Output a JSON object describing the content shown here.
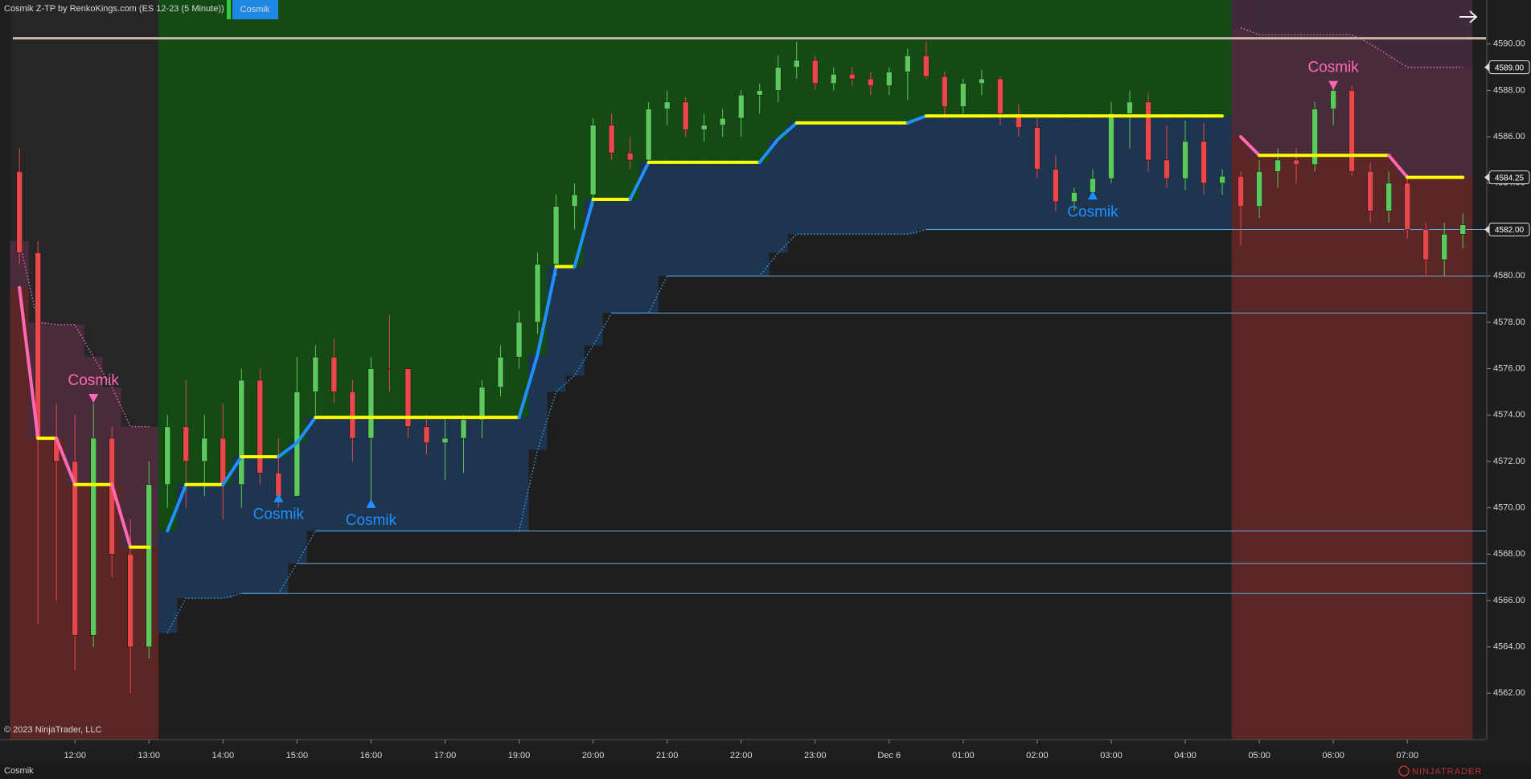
{
  "header": {
    "title": "Cosmik Z-TP by RenkoKings.com (ES 12-23 (5 Minute))",
    "tab": "Cosmik"
  },
  "footer": {
    "copyright": "© 2023 NinjaTrader, LLC",
    "tab": "Cosmik",
    "brand": "NINJATRADER"
  },
  "chart_data": {
    "type": "candlestick",
    "categories": [
      null,
      null,
      null,
      "12:00",
      null,
      null,
      null,
      "13:00",
      null,
      null,
      null,
      "14:00",
      null,
      null,
      null,
      "15:00",
      null,
      null,
      null,
      "16:00",
      null,
      null,
      null,
      "17:00",
      null,
      null,
      null,
      "19:00",
      null,
      null,
      null,
      "20:00",
      null,
      null,
      null,
      "21:00",
      null,
      null,
      null,
      "22:00",
      null,
      null,
      null,
      "23:00",
      null,
      null,
      null,
      "Dec 6",
      null,
      null,
      null,
      "01:00",
      null,
      null,
      null,
      "02:00",
      null,
      null,
      null,
      "03:00",
      null,
      null,
      null,
      "04:00",
      null,
      null,
      null,
      "05:00",
      null,
      null,
      null,
      "06:00",
      null,
      null,
      null,
      "07:00",
      null,
      null,
      null
    ],
    "open": [
      4584.5,
      4581,
      4573,
      4572,
      4564.5,
      4573,
      4568,
      4564,
      4571,
      4573.5,
      4572,
      4573,
      4571,
      4575.5,
      4571.5,
      4570.5,
      4575,
      4576.5,
      4575,
      4573,
      4576,
      4576,
      4573.5,
      4572.8,
      4573,
      4573.8,
      4575.2,
      4576.5,
      4578,
      4580.5,
      4583,
      4583.5,
      4586.5,
      4585.3,
      4585,
      4587.2,
      4587.5,
      4586.3,
      4586.5,
      4586.8,
      4587.8,
      4588,
      4589,
      4589.3,
      4588.3,
      4588.7,
      4588.5,
      4588.2,
      4588.8,
      4589.5,
      4588.6,
      4587.3,
      4588.3,
      4588.5,
      4587,
      4586.4,
      4584.6,
      4583.2,
      4583.6,
      4584.2,
      4587,
      4587.5,
      4585,
      4584.2,
      4585.8,
      4584,
      4584.3,
      4583,
      4584.5,
      4585,
      4584.8,
      4587.2,
      4588,
      4584.5,
      4582.8,
      4584,
      4582,
      4580.7,
      4581.8
    ],
    "high": [
      4585.5,
      4581.5,
      4574.5,
      4574,
      4574.5,
      4573.5,
      4569.5,
      4572,
      4574,
      4575.5,
      4574,
      4574.5,
      4576,
      4576,
      4573,
      4576.5,
      4577,
      4577.3,
      4575.5,
      4576.5,
      4578.3,
      4576,
      4574,
      4573.8,
      4574,
      4575.5,
      4577,
      4578.5,
      4581,
      4583.5,
      4584,
      4586.8,
      4587,
      4586,
      4587.5,
      4588,
      4587.7,
      4587,
      4587.2,
      4588,
      4588.3,
      4589.5,
      4590.1,
      4589.5,
      4589,
      4589,
      4588.8,
      4589,
      4589.8,
      4590.1,
      4588.8,
      4588.5,
      4588.9,
      4588.6,
      4587.4,
      4586.8,
      4585.2,
      4583.8,
      4584.6,
      4587.5,
      4588,
      4587.9,
      4586.5,
      4586.7,
      4586.6,
      4584.6,
      4584.5,
      4585,
      4585.5,
      4585.5,
      4587.5,
      4588.2,
      4588.2,
      4584.9,
      4584.5,
      4584.4,
      4582.3,
      4582.3,
      4582.7
    ],
    "low": [
      4580.5,
      4565,
      4566,
      4563,
      4564,
      4567,
      4562,
      4563.5,
      4570,
      4570,
      4570.5,
      4569.5,
      4570,
      4571,
      4570,
      4570.5,
      4574,
      4574.5,
      4572,
      4570.3,
      4575,
      4573,
      4572.3,
      4571.2,
      4571.5,
      4573,
      4574.8,
      4576,
      4577.5,
      4580,
      4582,
      4583,
      4585,
      4584.6,
      4584.8,
      4586.5,
      4586,
      4585.8,
      4586,
      4586,
      4587,
      4587.5,
      4588.5,
      4588,
      4588,
      4588.2,
      4587.8,
      4587.8,
      4587.6,
      4588.5,
      4586.8,
      4587,
      4587.8,
      4586.5,
      4586,
      4584.2,
      4582.8,
      4582.8,
      4583.3,
      4584,
      4585.5,
      4584.5,
      4583.8,
      4583.7,
      4583.5,
      4583.5,
      4581.3,
      4582.5,
      4583.8,
      4584,
      4584.5,
      4586.5,
      4584.3,
      4582.3,
      4582.3,
      4581.6,
      4580,
      4580,
      4581.2
    ],
    "close": [
      4581,
      4573,
      4572,
      4564.5,
      4573,
      4568,
      4564,
      4571,
      4573.5,
      4572,
      4573,
      4571,
      4575.5,
      4571.5,
      4570.5,
      4575,
      4576.5,
      4575,
      4573,
      4576,
      4576,
      4573.5,
      4572.8,
      4573,
      4573.8,
      4575.2,
      4576.5,
      4578,
      4580.5,
      4583,
      4583.5,
      4586.5,
      4585.3,
      4585,
      4587.2,
      4587.5,
      4586.3,
      4586.5,
      4586.8,
      4587.8,
      4588,
      4589,
      4589.3,
      4588.3,
      4588.7,
      4588.5,
      4588.2,
      4588.8,
      4589.5,
      4588.6,
      4587.3,
      4588.3,
      4588.5,
      4587,
      4586.4,
      4584.6,
      4583.2,
      4583.6,
      4584.2,
      4587,
      4587.5,
      4585,
      4584.2,
      4585.8,
      4584,
      4584.3,
      4583,
      4584.5,
      4585,
      4584.8,
      4587.2,
      4588,
      4584.5,
      4582.8,
      4584,
      4582,
      4580.7,
      4581.8,
      4582.2
    ],
    "up_color": "#5cc95c",
    "down_color": "#e8474c",
    "flat_color": "#ffff00",
    "overlays": {
      "bull_trend": {
        "color": "#1e90ff",
        "values": [
          null,
          null,
          null,
          null,
          null,
          null,
          null,
          null,
          4569,
          4571,
          4571,
          4571,
          4572.2,
          4572.2,
          4572.2,
          4572.8,
          4573.9,
          4573.9,
          4573.9,
          4573.9,
          4573.9,
          4573.9,
          4573.9,
          4573.9,
          4573.9,
          4573.9,
          4573.9,
          4573.9,
          4576.6,
          4580.4,
          4580.4,
          4583.3,
          4583.3,
          4583.3,
          4584.9,
          4584.9,
          4584.9,
          4584.9,
          4584.9,
          4584.9,
          4584.9,
          4585.9,
          4586.6,
          4586.6,
          4586.6,
          4586.6,
          4586.6,
          4586.6,
          4586.6,
          4586.9,
          4586.9,
          4586.9,
          4586.9,
          4586.9,
          4586.9,
          4586.9,
          4586.9,
          4586.9,
          4586.9,
          4586.9,
          4586.9,
          4586.9,
          4586.9,
          4586.9,
          4586.9,
          4586.9,
          null,
          null,
          null,
          null,
          null,
          null,
          null,
          null,
          null,
          null,
          null,
          null,
          null
        ]
      },
      "bear_trend": {
        "color": "#ff69b4",
        "values": [
          4579.5,
          4573,
          4573,
          4571,
          4571,
          4571,
          4568.3,
          4568.3,
          null,
          null,
          null,
          null,
          null,
          null,
          null,
          null,
          null,
          null,
          null,
          null,
          null,
          null,
          null,
          null,
          null,
          null,
          null,
          null,
          null,
          null,
          null,
          null,
          null,
          null,
          null,
          null,
          null,
          null,
          null,
          null,
          null,
          null,
          null,
          null,
          null,
          null,
          null,
          null,
          null,
          null,
          null,
          null,
          null,
          null,
          null,
          null,
          null,
          null,
          null,
          null,
          null,
          null,
          null,
          null,
          null,
          null,
          4586,
          4585.2,
          4585.2,
          4585.2,
          4585.2,
          4585.2,
          4585.2,
          4585.2,
          4585.2,
          4584.25,
          4584.25,
          4584.25,
          4584.25
        ]
      },
      "lower_band": {
        "color": "#3a9ae8",
        "values": [
          null,
          null,
          null,
          null,
          null,
          null,
          null,
          null,
          4564.6,
          4566.1,
          4566.1,
          4566.1,
          4566.3,
          4566.3,
          4566.3,
          4567.6,
          4569,
          4569,
          4569,
          4569,
          4569,
          4569,
          4569,
          4569,
          4569,
          4569,
          4569,
          4569,
          4572.5,
          4575,
          4575.7,
          4577,
          4578.4,
          4578.4,
          4578.4,
          4580,
          4580,
          4580,
          4580,
          4580,
          4580,
          4581,
          4581.8,
          4581.8,
          4581.8,
          4581.8,
          4581.8,
          4581.8,
          4581.8,
          4582,
          4582,
          4582,
          4582,
          4582,
          4582,
          4582,
          4582,
          4582,
          4582,
          4582,
          4582,
          4582,
          4582,
          4582,
          4582,
          4582,
          null,
          null,
          null,
          null,
          null,
          null,
          null,
          null,
          null,
          null,
          null,
          null,
          null
        ]
      },
      "upper_band": {
        "color": "#e070b0",
        "values": [
          4581.5,
          4578,
          4577.9,
          4577.9,
          4576.5,
          4575.2,
          4573.5,
          4573.5,
          null,
          null,
          null,
          null,
          null,
          null,
          null,
          null,
          null,
          null,
          null,
          null,
          null,
          null,
          null,
          null,
          null,
          null,
          null,
          null,
          null,
          null,
          null,
          null,
          null,
          null,
          null,
          null,
          null,
          null,
          null,
          null,
          null,
          null,
          null,
          null,
          null,
          null,
          null,
          null,
          null,
          null,
          null,
          null,
          null,
          null,
          null,
          null,
          null,
          null,
          null,
          null,
          null,
          null,
          null,
          null,
          null,
          null,
          4590.7,
          4590.4,
          4590.4,
          4590.4,
          4590.4,
          4590.4,
          4590.4,
          4590,
          4589.5,
          4589,
          4589,
          4589,
          4589
        ]
      }
    },
    "levels": [
      4566.3,
      4567.6,
      4569,
      4578.4,
      4580,
      4582
    ],
    "level_color": "#6fa8dc",
    "high_line": 4590.25,
    "high_line_color": "#c9b7a6",
    "signals": [
      {
        "text": "Cosmik",
        "index": 4,
        "value": 4574.7,
        "direction": "down"
      },
      {
        "text": "Cosmik",
        "index": 14,
        "value": 4570.45,
        "direction": "up"
      },
      {
        "text": "Cosmik",
        "index": 19,
        "value": 4570.2,
        "direction": "up"
      },
      {
        "text": "Cosmik",
        "index": 58,
        "value": 4583.5,
        "direction": "up"
      },
      {
        "text": "Cosmik",
        "index": 71,
        "value": 4588.2,
        "direction": "down"
      }
    ],
    "ylim": [
      4560,
      4591.9
    ],
    "yticks": [
      {
        "value": 4562,
        "label": "4562.00"
      },
      {
        "value": 4564,
        "label": "4564.00"
      },
      {
        "value": 4566,
        "label": "4566.00"
      },
      {
        "value": 4568,
        "label": "4568.00"
      },
      {
        "value": 4570,
        "label": "4570.00"
      },
      {
        "value": 4572,
        "label": "4572.00"
      },
      {
        "value": 4574,
        "label": "4574.00"
      },
      {
        "value": 4576,
        "label": "4576.00"
      },
      {
        "value": 4578,
        "label": "4578.00"
      },
      {
        "value": 4580,
        "label": "4580.00"
      },
      {
        "value": 4582,
        "label": "4582.00"
      },
      {
        "value": 4584,
        "label": "4584.00"
      },
      {
        "value": 4586,
        "label": "4586.00"
      },
      {
        "value": 4588,
        "label": "4588.00"
      },
      {
        "value": 4590,
        "label": "4590.00"
      }
    ],
    "price_markers": [
      {
        "value": 4589,
        "label": "4589.00"
      },
      {
        "value": 4584.25,
        "label": "4584.25"
      },
      {
        "value": 4582,
        "label": "4582.00"
      }
    ]
  }
}
